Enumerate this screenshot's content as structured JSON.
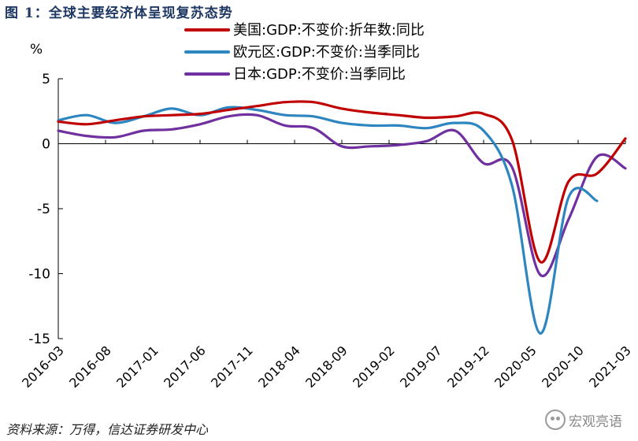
{
  "figure_title": "图 1：全球主要经济体呈现复苏态势",
  "source_note": "资料来源：万得，信达证券研发中心",
  "watermark": "宏观亮语",
  "chart_data": {
    "type": "line",
    "unit_label": "%",
    "ylim": [
      -15,
      5
    ],
    "y_ticks": [
      5,
      0,
      -5,
      -10,
      -15
    ],
    "x_tick_labels": [
      "2016-03",
      "2016-08",
      "2017-01",
      "2017-06",
      "2017-11",
      "2018-04",
      "2018-09",
      "2019-02",
      "2019-07",
      "2019-12",
      "2020-05",
      "2020-10",
      "2021-03"
    ],
    "x_tick_index": [
      0,
      5,
      10,
      15,
      20,
      25,
      30,
      35,
      40,
      45,
      50,
      55,
      60
    ],
    "legend_position": "top-center",
    "grid": false,
    "x_axis_at_zero": true,
    "series": [
      {
        "name": "美国:GDP:不变价:折年数:同比",
        "color": "#c00000",
        "x": [
          0,
          3,
          6,
          9,
          12,
          15,
          18,
          21,
          24,
          27,
          30,
          33,
          36,
          39,
          42,
          45,
          48,
          51,
          54,
          57,
          60
        ],
        "values": [
          1.7,
          1.5,
          1.8,
          2.1,
          2.2,
          2.3,
          2.6,
          2.9,
          3.2,
          3.2,
          2.7,
          2.4,
          2.2,
          2.0,
          2.1,
          2.3,
          0.3,
          -9.1,
          -2.9,
          -2.3,
          0.4
        ]
      },
      {
        "name": "欧元区:GDP:不变价:当季同比",
        "color": "#2e86c1",
        "x": [
          0,
          3,
          6,
          9,
          12,
          15,
          18,
          21,
          24,
          27,
          30,
          33,
          36,
          39,
          42,
          45,
          48,
          51,
          54,
          57
        ],
        "values": [
          1.8,
          2.2,
          1.6,
          2.1,
          2.7,
          2.2,
          2.8,
          2.6,
          2.2,
          2.1,
          1.6,
          1.4,
          1.4,
          1.2,
          1.6,
          1.0,
          -3.2,
          -14.6,
          -4.1,
          -4.4
        ]
      },
      {
        "name": "日本:GDP:不变价:当季同比",
        "color": "#7030a0",
        "x": [
          0,
          3,
          6,
          9,
          12,
          15,
          18,
          21,
          24,
          27,
          30,
          33,
          36,
          39,
          42,
          45,
          48,
          51,
          54,
          57,
          60
        ],
        "values": [
          1.0,
          0.6,
          0.5,
          1.0,
          1.1,
          1.5,
          2.1,
          2.2,
          1.4,
          1.2,
          -0.2,
          -0.2,
          -0.1,
          0.2,
          1.0,
          -1.5,
          -1.8,
          -10.1,
          -5.8,
          -1.0,
          -1.9
        ]
      }
    ]
  }
}
